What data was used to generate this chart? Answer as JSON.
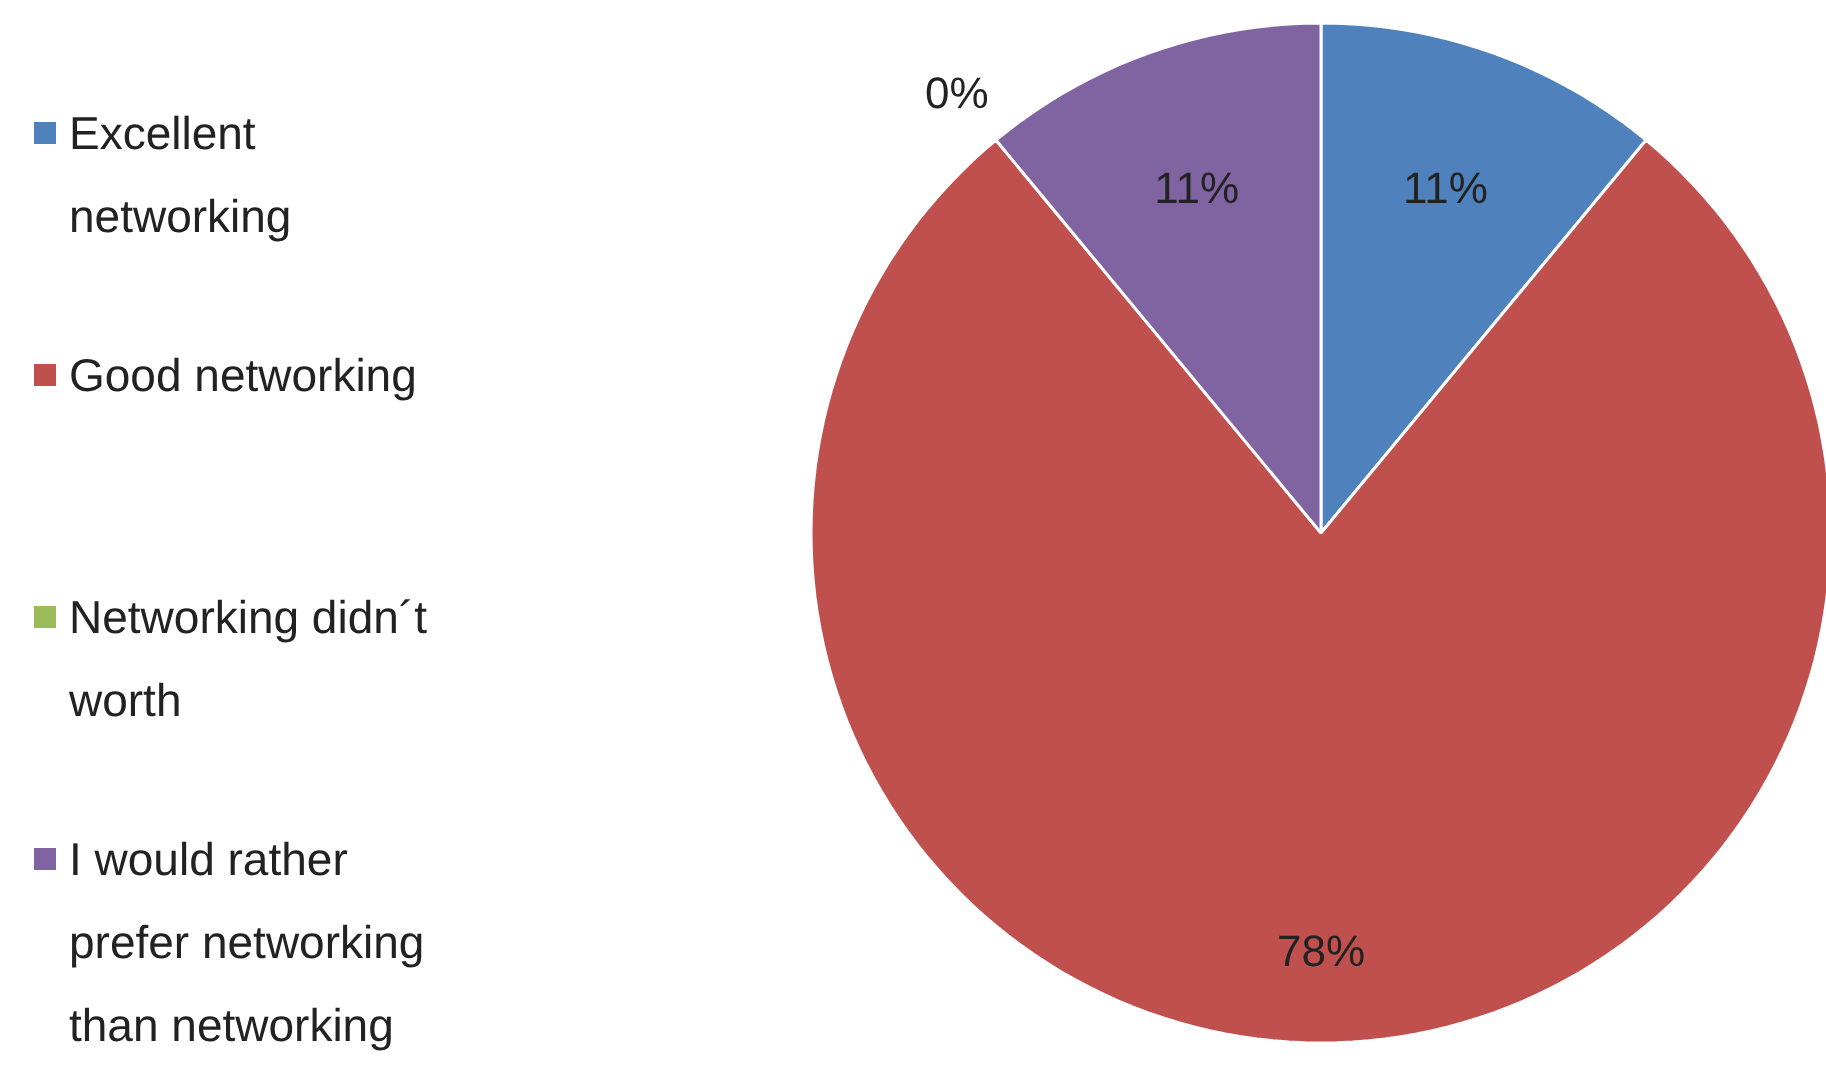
{
  "chart_data": {
    "type": "pie",
    "categories": [
      "Excellent networking",
      "Good networking",
      "Networking didn´t worth",
      "I would rather prefer networking than networking"
    ],
    "values": [
      11,
      78,
      0,
      11
    ],
    "colors": [
      "#4f81bd",
      "#c0504d",
      "#9bbb59",
      "#8064a2"
    ],
    "value_labels": [
      "11%",
      "78%",
      "0%",
      "11%"
    ],
    "legend": "left"
  }
}
